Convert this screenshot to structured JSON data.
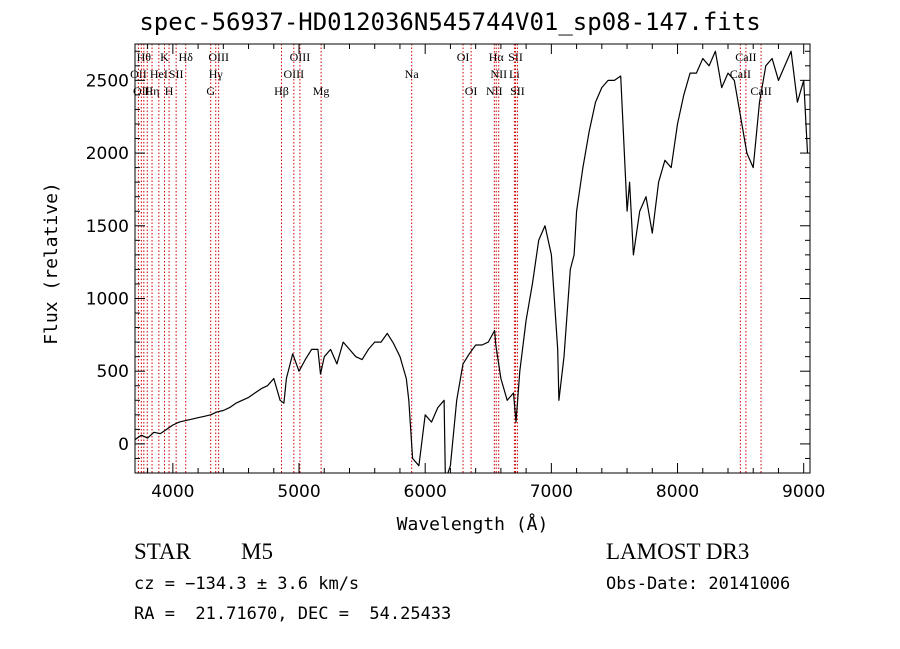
{
  "chart_data": {
    "type": "line",
    "title": "spec-56937-HD012036N545744V01_sp08-147.fits",
    "xlabel": "Wavelength (Å)",
    "ylabel": "Flux (relative)",
    "xlim": [
      3700,
      9050
    ],
    "ylim": [
      -200,
      2750
    ],
    "xticks": [
      4000,
      5000,
      6000,
      7000,
      8000,
      9000
    ],
    "xtick_labels": [
      "4000",
      "5000",
      "6000",
      "7000",
      "8000",
      "9000"
    ],
    "yticks": [
      0,
      500,
      1000,
      1500,
      2000,
      2500
    ],
    "ytick_labels": [
      "0",
      "500",
      "1000",
      "1500",
      "2000",
      "2500"
    ],
    "series": [
      {
        "name": "flux",
        "x": [
          3700,
          3750,
          3800,
          3850,
          3900,
          3950,
          4000,
          4050,
          4100,
          4150,
          4200,
          4250,
          4300,
          4350,
          4400,
          4450,
          4500,
          4550,
          4600,
          4650,
          4700,
          4750,
          4800,
          4850,
          4880,
          4900,
          4950,
          5000,
          5050,
          5100,
          5150,
          5170,
          5200,
          5250,
          5300,
          5350,
          5400,
          5450,
          5500,
          5550,
          5600,
          5650,
          5700,
          5750,
          5800,
          5850,
          5870,
          5900,
          5950,
          6000,
          6050,
          6100,
          6150,
          6160,
          6200,
          6250,
          6300,
          6350,
          6400,
          6450,
          6500,
          6550,
          6560,
          6600,
          6650,
          6700,
          6720,
          6750,
          6800,
          6850,
          6900,
          6950,
          7000,
          7050,
          7060,
          7100,
          7150,
          7180,
          7200,
          7250,
          7300,
          7350,
          7400,
          7450,
          7500,
          7550,
          7600,
          7620,
          7650,
          7700,
          7750,
          7800,
          7850,
          7900,
          7950,
          8000,
          8050,
          8100,
          8150,
          8200,
          8250,
          8300,
          8350,
          8400,
          8450,
          8500,
          8550,
          8600,
          8650,
          8700,
          8750,
          8800,
          8850,
          8900,
          8950,
          9000,
          9030
        ],
        "y": [
          30,
          60,
          40,
          80,
          70,
          100,
          130,
          150,
          160,
          170,
          180,
          190,
          200,
          220,
          230,
          250,
          280,
          300,
          320,
          350,
          380,
          400,
          450,
          300,
          280,
          450,
          620,
          500,
          580,
          650,
          650,
          480,
          600,
          650,
          550,
          700,
          650,
          600,
          580,
          650,
          700,
          700,
          760,
          690,
          600,
          450,
          300,
          -100,
          -150,
          200,
          150,
          250,
          300,
          -250,
          -150,
          300,
          550,
          620,
          680,
          680,
          700,
          780,
          680,
          450,
          300,
          350,
          150,
          500,
          850,
          1100,
          1400,
          1500,
          1300,
          650,
          300,
          600,
          1200,
          1300,
          1600,
          1900,
          2150,
          2350,
          2450,
          2500,
          2500,
          2530,
          1600,
          1800,
          1300,
          1600,
          1700,
          1450,
          1800,
          1950,
          1900,
          2200,
          2400,
          2550,
          2550,
          2650,
          2600,
          2700,
          2450,
          2550,
          2500,
          2250,
          2000,
          1900,
          2350,
          2600,
          2650,
          2500,
          2600,
          2700,
          2350,
          2500,
          2000
        ]
      }
    ],
    "lines": [
      {
        "wavelength": 3727,
        "row": 1,
        "label": "OII"
      },
      {
        "wavelength": 3750,
        "row": 2,
        "label": "OII"
      },
      {
        "wavelength": 3770,
        "row": 0,
        "label": "Hθ"
      },
      {
        "wavelength": 3797,
        "row": 0,
        "label": ""
      },
      {
        "wavelength": 3835,
        "row": 2,
        "label": "Hη"
      },
      {
        "wavelength": 3889,
        "row": 1,
        "label": "HeI"
      },
      {
        "wavelength": 3934,
        "row": 0,
        "label": "K"
      },
      {
        "wavelength": 3970,
        "row": 2,
        "label": "H"
      },
      {
        "wavelength": 4026,
        "row": 1,
        "label": "SII"
      },
      {
        "wavelength": 4102,
        "row": 0,
        "label": "Hδ"
      },
      {
        "wavelength": 4300,
        "row": 2,
        "label": "G"
      },
      {
        "wavelength": 4340,
        "row": 1,
        "label": "Hγ"
      },
      {
        "wavelength": 4363,
        "row": 0,
        "label": "OIII"
      },
      {
        "wavelength": 4861,
        "row": 2,
        "label": "Hβ"
      },
      {
        "wavelength": 4959,
        "row": 1,
        "label": "OIII"
      },
      {
        "wavelength": 5007,
        "row": 0,
        "label": "OIII"
      },
      {
        "wavelength": 5175,
        "row": 2,
        "label": "Mg"
      },
      {
        "wavelength": 5893,
        "row": 1,
        "label": "Na"
      },
      {
        "wavelength": 6300,
        "row": 0,
        "label": "OI"
      },
      {
        "wavelength": 6364,
        "row": 2,
        "label": "OI"
      },
      {
        "wavelength": 6548,
        "row": 2,
        "label": "NII"
      },
      {
        "wavelength": 6563,
        "row": 0,
        "label": "Hα"
      },
      {
        "wavelength": 6583,
        "row": 1,
        "label": "NII"
      },
      {
        "wavelength": 6707,
        "row": 1,
        "label": "Li"
      },
      {
        "wavelength": 6716,
        "row": 0,
        "label": "SII"
      },
      {
        "wavelength": 6731,
        "row": 2,
        "label": "SII"
      },
      {
        "wavelength": 8498,
        "row": 1,
        "label": "CaII"
      },
      {
        "wavelength": 8542,
        "row": 0,
        "label": "CaII"
      },
      {
        "wavelength": 8662,
        "row": 2,
        "label": "CaII"
      }
    ]
  },
  "info": {
    "object_type": "STAR",
    "subclass": "M5",
    "survey": "LAMOST DR3",
    "cz": "cz = −134.3 ± 3.6 km/s",
    "obs_date": "Obs-Date: 20141006",
    "coords": "RA =  21.71670, DEC =  54.25433"
  },
  "colors": {
    "spectrum": "#000000",
    "line_markers": "#cc0000",
    "axes": "#000000",
    "background": "#ffffff"
  }
}
